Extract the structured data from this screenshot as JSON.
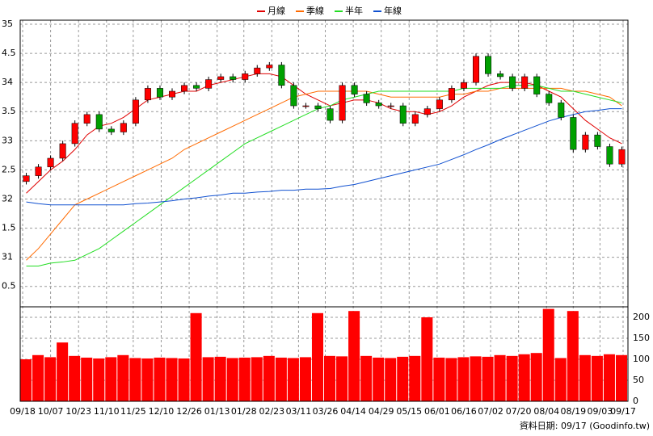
{
  "chart_data": [
    {
      "type": "candlestick",
      "xlim": [
        0,
        50
      ],
      "xticks": [
        {
          "value": 0.2,
          "label": "09/18"
        },
        {
          "value": 2.5,
          "label": "10/07"
        },
        {
          "value": 4.8,
          "label": "10/23"
        },
        {
          "value": 7.1,
          "label": "11/10"
        },
        {
          "value": 9.3,
          "label": "11/25"
        },
        {
          "value": 11.6,
          "label": "12/10"
        },
        {
          "value": 13.9,
          "label": "12/26"
        },
        {
          "value": 16.2,
          "label": "01/13"
        },
        {
          "value": 18.4,
          "label": "01/28"
        },
        {
          "value": 20.7,
          "label": "02/23"
        },
        {
          "value": 22.9,
          "label": "03/11"
        },
        {
          "value": 25.1,
          "label": "03/26"
        },
        {
          "value": 27.4,
          "label": "04/14"
        },
        {
          "value": 29.7,
          "label": "04/29"
        },
        {
          "value": 32.0,
          "label": "05/15"
        },
        {
          "value": 34.3,
          "label": "06/01"
        },
        {
          "value": 36.5,
          "label": "06/16"
        },
        {
          "value": 38.7,
          "label": "07/02"
        },
        {
          "value": 41.0,
          "label": "07/20"
        },
        {
          "value": 43.3,
          "label": "08/04"
        },
        {
          "value": 45.5,
          "label": "08/19"
        },
        {
          "value": 47.7,
          "label": "09/03"
        },
        {
          "value": 49.6,
          "label": "09/17"
        }
      ],
      "ylim": [
        30.15,
        35
      ],
      "yticks": [
        35,
        {
          "value": 34.5,
          "label": "4.5"
        },
        34,
        {
          "value": 33.5,
          "label": "3.5"
        },
        33,
        {
          "value": 32.5,
          "label": "2.5"
        },
        32,
        {
          "value": 31.5,
          "label": "1.5"
        },
        31,
        {
          "value": 30.5,
          "label": "0.5"
        }
      ],
      "grid": true,
      "up_color": "#ff0000",
      "down_color": "#00a000",
      "open": [
        32.3,
        32.4,
        32.55,
        32.7,
        32.95,
        33.3,
        33.45,
        33.2,
        33.15,
        33.3,
        33.7,
        33.9,
        33.75,
        33.85,
        33.95,
        33.9,
        34.05,
        34.1,
        34.05,
        34.15,
        34.25,
        34.3,
        33.95,
        33.6,
        33.6,
        33.55,
        33.35,
        33.95,
        33.8,
        33.65,
        33.6,
        33.6,
        33.3,
        33.45,
        33.55,
        33.7,
        33.9,
        34.0,
        34.45,
        34.15,
        34.1,
        33.9,
        34.1,
        33.8,
        33.65,
        33.4,
        32.85,
        33.1,
        32.9,
        32.6
      ],
      "high": [
        32.45,
        32.6,
        32.75,
        33.0,
        33.35,
        33.5,
        33.5,
        33.25,
        33.35,
        33.75,
        33.95,
        33.95,
        33.9,
        34.0,
        34.0,
        34.1,
        34.15,
        34.15,
        34.2,
        34.3,
        34.35,
        34.35,
        34.0,
        33.65,
        33.65,
        33.6,
        34.0,
        34.0,
        33.85,
        33.7,
        33.65,
        33.65,
        33.5,
        33.6,
        33.75,
        33.95,
        34.05,
        34.5,
        34.5,
        34.2,
        34.15,
        34.15,
        34.15,
        33.85,
        33.7,
        33.45,
        33.15,
        33.15,
        32.95,
        32.9
      ],
      "low": [
        32.25,
        32.35,
        32.5,
        32.65,
        32.9,
        33.25,
        33.15,
        33.1,
        33.1,
        33.25,
        33.65,
        33.7,
        33.7,
        33.8,
        33.85,
        33.85,
        34.0,
        34.0,
        34.0,
        34.1,
        34.2,
        33.9,
        33.55,
        33.55,
        33.5,
        33.3,
        33.3,
        33.75,
        33.6,
        33.55,
        33.55,
        33.25,
        33.25,
        33.4,
        33.5,
        33.65,
        33.85,
        33.95,
        34.1,
        34.05,
        33.85,
        33.85,
        33.75,
        33.6,
        33.35,
        32.8,
        32.8,
        32.85,
        32.55,
        32.55
      ],
      "close": [
        32.4,
        32.55,
        32.7,
        32.95,
        33.3,
        33.45,
        33.2,
        33.15,
        33.3,
        33.7,
        33.9,
        33.75,
        33.85,
        33.95,
        33.9,
        34.05,
        34.1,
        34.05,
        34.15,
        34.25,
        34.3,
        33.95,
        33.6,
        33.6,
        33.55,
        33.35,
        33.95,
        33.8,
        33.65,
        33.6,
        33.6,
        33.3,
        33.45,
        33.55,
        33.7,
        33.9,
        34.0,
        34.45,
        34.15,
        34.1,
        33.9,
        34.1,
        33.8,
        33.65,
        33.4,
        32.85,
        33.1,
        32.9,
        32.6,
        32.85
      ],
      "series": [
        {
          "name": "月線",
          "color": "#e00000",
          "values": [
            32.1,
            32.3,
            32.5,
            32.65,
            32.85,
            33.1,
            33.25,
            33.3,
            33.4,
            33.55,
            33.7,
            33.75,
            33.8,
            33.85,
            33.85,
            33.95,
            34.0,
            34.05,
            34.1,
            34.15,
            34.15,
            34.1,
            33.95,
            33.8,
            33.7,
            33.6,
            33.65,
            33.7,
            33.7,
            33.65,
            33.55,
            33.5,
            33.5,
            33.45,
            33.5,
            33.6,
            33.75,
            33.85,
            33.95,
            34.0,
            34.0,
            34.0,
            33.95,
            33.85,
            33.75,
            33.55,
            33.35,
            33.2,
            33.05,
            32.95
          ]
        },
        {
          "name": "季線",
          "color": "#ff6a00",
          "values": [
            30.95,
            31.15,
            31.4,
            31.65,
            31.9,
            32.0,
            32.1,
            32.2,
            32.3,
            32.4,
            32.5,
            32.6,
            32.7,
            32.85,
            32.95,
            33.05,
            33.15,
            33.25,
            33.35,
            33.45,
            33.55,
            33.65,
            33.75,
            33.8,
            33.85,
            33.85,
            33.85,
            33.85,
            33.85,
            33.8,
            33.75,
            33.75,
            33.75,
            33.75,
            33.75,
            33.8,
            33.8,
            33.85,
            33.85,
            33.9,
            33.9,
            33.9,
            33.9,
            33.9,
            33.9,
            33.85,
            33.85,
            33.8,
            33.75,
            33.6
          ]
        },
        {
          "name": "半年",
          "color": "#22dd22",
          "values": [
            30.85,
            30.85,
            30.9,
            30.92,
            30.95,
            31.05,
            31.15,
            31.3,
            31.45,
            31.6,
            31.75,
            31.9,
            32.05,
            32.2,
            32.35,
            32.5,
            32.65,
            32.8,
            32.95,
            33.05,
            33.15,
            33.25,
            33.35,
            33.45,
            33.55,
            33.6,
            33.7,
            33.75,
            33.8,
            33.85,
            33.85,
            33.85,
            33.85,
            33.85,
            33.85,
            33.85,
            33.9,
            33.9,
            33.9,
            33.9,
            33.95,
            33.95,
            33.95,
            33.9,
            33.85,
            33.85,
            33.8,
            33.75,
            33.7,
            33.65
          ]
        },
        {
          "name": "年線",
          "color": "#1050d0",
          "values": [
            31.95,
            31.92,
            31.9,
            31.9,
            31.9,
            31.9,
            31.9,
            31.9,
            31.9,
            31.92,
            31.93,
            31.95,
            31.97,
            32.0,
            32.02,
            32.05,
            32.07,
            32.1,
            32.1,
            32.12,
            32.13,
            32.15,
            32.15,
            32.17,
            32.17,
            32.18,
            32.22,
            32.25,
            32.3,
            32.35,
            32.4,
            32.45,
            32.5,
            32.55,
            32.6,
            32.68,
            32.76,
            32.85,
            32.93,
            33.02,
            33.1,
            33.18,
            33.26,
            33.34,
            33.4,
            33.45,
            33.5,
            33.52,
            33.55,
            33.55
          ]
        }
      ]
    },
    {
      "type": "bar",
      "color": "#ff0000",
      "ylim": [
        0,
        225
      ],
      "yticks": [
        0,
        50,
        100,
        150,
        200
      ],
      "grid": true,
      "values": [
        100,
        110,
        105,
        140,
        108,
        104,
        102,
        105,
        110,
        103,
        102,
        104,
        103,
        102,
        210,
        105,
        106,
        103,
        104,
        105,
        108,
        104,
        103,
        105,
        210,
        108,
        107,
        215,
        108,
        104,
        103,
        106,
        108,
        200,
        104,
        103,
        105,
        107,
        106,
        110,
        108,
        112,
        115,
        220,
        103,
        215,
        110,
        108,
        112,
        110
      ]
    }
  ],
  "footer": "資料日期: 09/17  (Goodinfo.tw)"
}
